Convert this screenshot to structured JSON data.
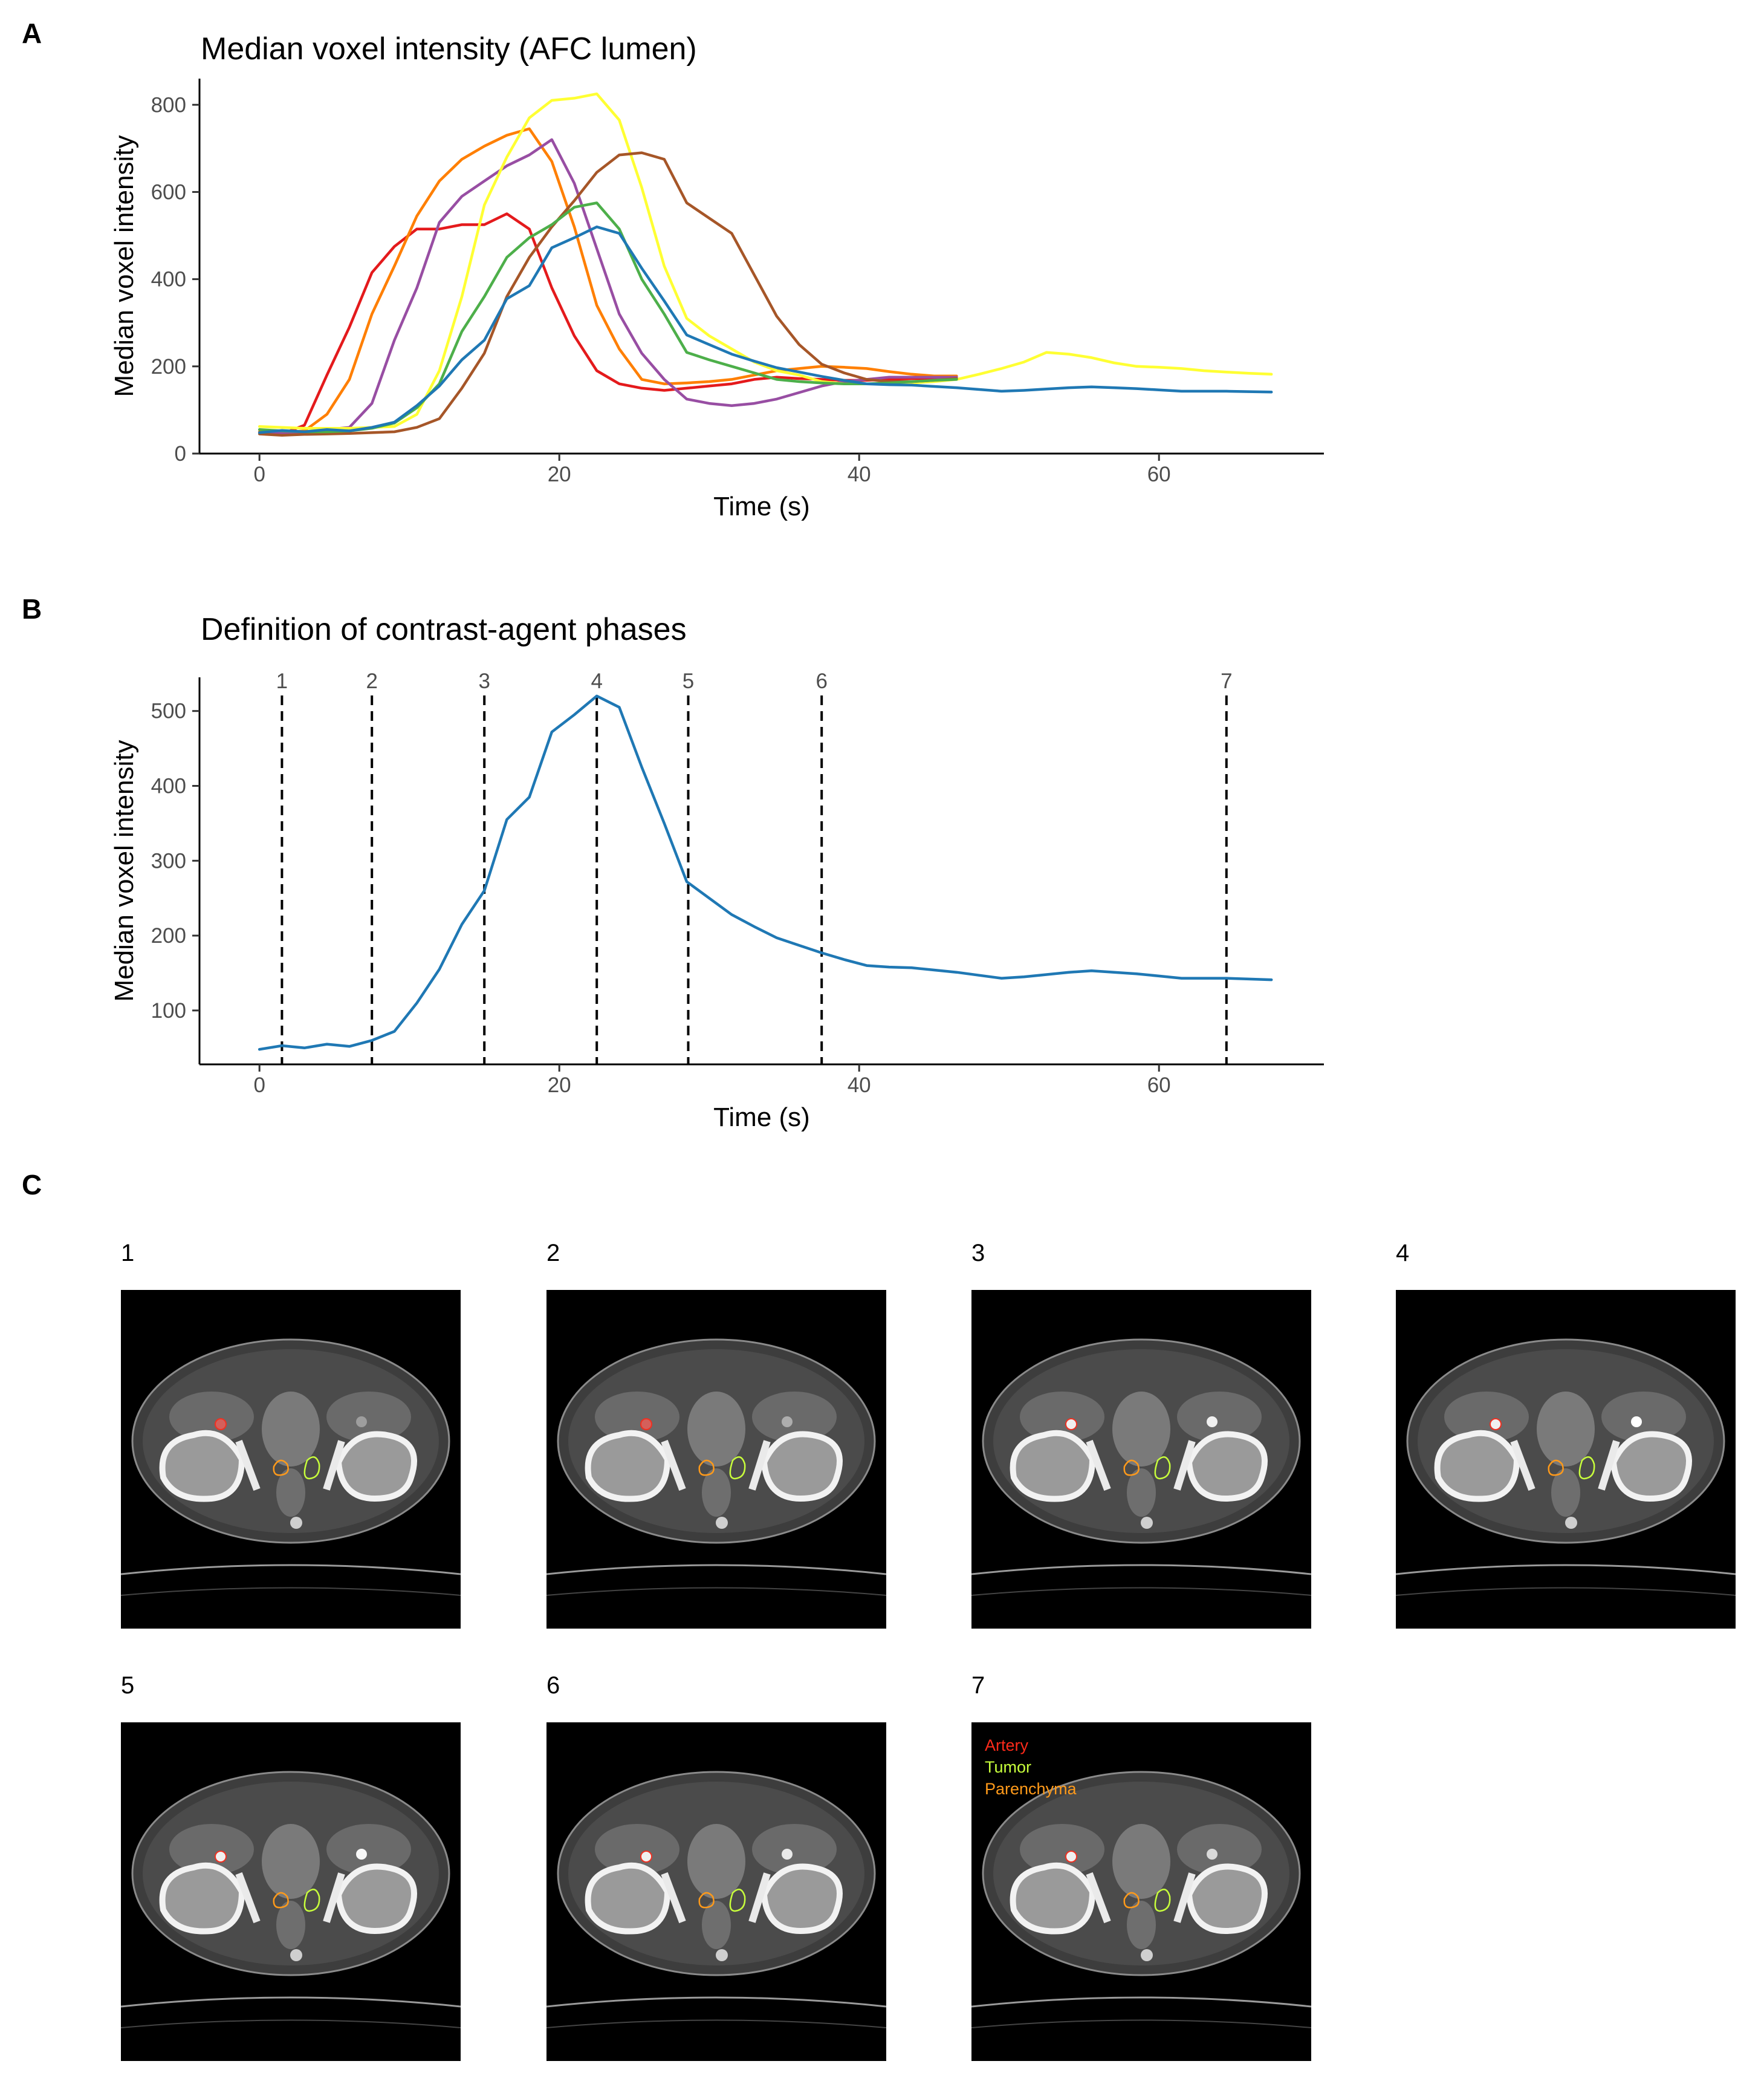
{
  "panels": {
    "A": {
      "letter": "A"
    },
    "B": {
      "letter": "B"
    },
    "C": {
      "letter": "C"
    }
  },
  "chart_data": [
    {
      "type": "line",
      "title": "Median voxel intensity (AFC lumen)",
      "xlabel": "Time (s)",
      "ylabel": "Median voxel intensity",
      "xlim": [
        -4,
        71
      ],
      "ylim": [
        0,
        860
      ],
      "xticks": [
        0,
        20,
        40,
        60
      ],
      "yticks": [
        0,
        200,
        400,
        600,
        800
      ],
      "grid": false,
      "series": [
        {
          "color": "#e41a1c",
          "x": [
            0,
            1.5,
            3,
            4.5,
            6,
            7.5,
            9,
            10.5,
            12,
            13.5,
            15,
            16.5,
            18,
            19.5,
            21,
            22.5,
            24,
            25.5,
            27,
            28.5,
            30,
            31.5,
            33,
            34.5,
            36,
            37.5,
            39,
            40.5,
            42,
            43.5,
            45,
            46.5
          ],
          "y": [
            50,
            45,
            65,
            180,
            290,
            415,
            475,
            515,
            515,
            525,
            525,
            550,
            515,
            380,
            270,
            190,
            160,
            150,
            145,
            150,
            155,
            160,
            170,
            175,
            172,
            170,
            168,
            168,
            170,
            172,
            172,
            173
          ]
        },
        {
          "color": "#ff7f00",
          "x": [
            0,
            1.5,
            3,
            4.5,
            6,
            7.5,
            9,
            10.5,
            12,
            13.5,
            15,
            16.5,
            18,
            19.5,
            21,
            22.5,
            24,
            25.5,
            27,
            28.5,
            30,
            31.5,
            33,
            34.5,
            36,
            37.5,
            39,
            40.5,
            42,
            43.5,
            45,
            46.5
          ],
          "y": [
            50,
            48,
            52,
            90,
            170,
            320,
            430,
            545,
            625,
            675,
            705,
            730,
            745,
            670,
            520,
            340,
            240,
            170,
            160,
            162,
            165,
            170,
            180,
            190,
            195,
            200,
            198,
            195,
            188,
            182,
            178,
            178
          ]
        },
        {
          "color": "#984ea3",
          "x": [
            0,
            1.5,
            3,
            4.5,
            6,
            7.5,
            9,
            10.5,
            12,
            13.5,
            15,
            16.5,
            18,
            19.5,
            21,
            22.5,
            24,
            25.5,
            27,
            28.5,
            30,
            31.5,
            33,
            34.5,
            36,
            37.5,
            39,
            40.5,
            42,
            43.5,
            45,
            46.5
          ],
          "y": [
            48,
            46,
            48,
            55,
            60,
            115,
            260,
            380,
            530,
            590,
            625,
            660,
            685,
            720,
            620,
            470,
            320,
            230,
            170,
            125,
            115,
            110,
            115,
            125,
            140,
            155,
            165,
            170,
            175,
            175,
            175,
            175
          ]
        },
        {
          "color": "#ffff33",
          "x": [
            0,
            1.5,
            3,
            4.5,
            6,
            7.5,
            9,
            10.5,
            12,
            13.5,
            15,
            16.5,
            18,
            19.5,
            21,
            22.5,
            24,
            25.5,
            27,
            28.5,
            30,
            31.5,
            33,
            34.5,
            36,
            37.5,
            39,
            40.5,
            42,
            43.5,
            45,
            46.5,
            48,
            49.5,
            51,
            52.5,
            54,
            55.5,
            57,
            58.5,
            60,
            61.5,
            63,
            64.5,
            66,
            67.5
          ],
          "y": [
            62,
            60,
            58,
            58,
            58,
            60,
            62,
            90,
            190,
            360,
            570,
            680,
            770,
            810,
            815,
            825,
            765,
            610,
            430,
            310,
            270,
            240,
            210,
            190,
            180,
            165,
            160,
            160,
            160,
            162,
            165,
            170,
            182,
            195,
            210,
            232,
            228,
            220,
            208,
            200,
            198,
            195,
            190,
            187,
            184,
            182
          ]
        },
        {
          "color": "#a65628",
          "x": [
            0,
            1.5,
            3,
            4.5,
            6,
            7.5,
            9,
            10.5,
            12,
            13.5,
            15,
            16.5,
            18,
            19.5,
            21,
            22.5,
            24,
            25.5,
            27,
            28.5,
            30,
            31.5,
            33,
            34.5,
            36,
            37.5,
            39,
            40.5,
            42,
            43.5,
            45,
            46.5
          ],
          "y": [
            45,
            42,
            44,
            45,
            46,
            48,
            50,
            60,
            80,
            150,
            230,
            360,
            450,
            520,
            580,
            645,
            685,
            690,
            675,
            575,
            540,
            505,
            410,
            315,
            250,
            205,
            185,
            170,
            165,
            165,
            168,
            172
          ]
        },
        {
          "color": "#4daf4a",
          "x": [
            0,
            1.5,
            3,
            4.5,
            6,
            7.5,
            9,
            10.5,
            12,
            13.5,
            15,
            16.5,
            18,
            19.5,
            21,
            22.5,
            24,
            25.5,
            27,
            28.5,
            30,
            31.5,
            33,
            34.5,
            36,
            37.5,
            39,
            40.5,
            42,
            43.5,
            45,
            46.5
          ],
          "y": [
            55,
            52,
            50,
            50,
            52,
            58,
            70,
            105,
            160,
            280,
            360,
            450,
            495,
            525,
            565,
            575,
            515,
            400,
            320,
            232,
            215,
            200,
            185,
            170,
            165,
            162,
            160,
            160,
            162,
            165,
            168,
            170
          ]
        },
        {
          "color": "#1f78b4",
          "x": [
            0,
            1.5,
            3,
            4.5,
            6,
            7.5,
            9,
            10.5,
            12,
            13.5,
            15,
            16.5,
            18,
            19.5,
            21,
            22.5,
            24,
            25.5,
            27,
            28.5,
            30,
            31.5,
            33,
            34.5,
            36,
            37.5,
            39,
            40.5,
            42,
            43.5,
            45,
            46.5,
            48,
            49.5,
            51,
            52.5,
            54,
            55.5,
            57,
            58.5,
            60,
            61.5,
            63,
            64.5,
            66,
            67.5
          ],
          "y": [
            48,
            53,
            50,
            55,
            52,
            60,
            72,
            110,
            155,
            215,
            260,
            355,
            385,
            472,
            495,
            520,
            505,
            425,
            350,
            272,
            250,
            228,
            212,
            197,
            187,
            177,
            168,
            160,
            158,
            157,
            154,
            151,
            147,
            143,
            145,
            148,
            151,
            153,
            151,
            149,
            146,
            143,
            143,
            143,
            142,
            141
          ]
        }
      ]
    },
    {
      "type": "line",
      "title": "Definition of contrast-agent phases",
      "xlabel": "Time (s)",
      "ylabel": "Median voxel intensity",
      "xlim": [
        -4,
        71
      ],
      "ylim": [
        28,
        545
      ],
      "xticks": [
        0,
        20,
        40,
        60
      ],
      "yticks": [
        100,
        200,
        300,
        400,
        500
      ],
      "grid": false,
      "series": [
        {
          "color": "#1f78b4",
          "x": [
            0,
            1.5,
            3,
            4.5,
            6,
            7.5,
            9,
            10.5,
            12,
            13.5,
            15,
            16.5,
            18,
            19.5,
            21,
            22.5,
            24,
            25.5,
            27,
            28.5,
            30,
            31.5,
            33,
            34.5,
            36,
            37.5,
            39,
            40.5,
            42,
            43.5,
            45,
            46.5,
            48,
            49.5,
            51,
            52.5,
            54,
            55.5,
            57,
            58.5,
            60,
            61.5,
            63,
            64.5,
            66,
            67.5
          ],
          "y": [
            48,
            53,
            50,
            55,
            52,
            60,
            72,
            110,
            155,
            215,
            260,
            355,
            385,
            472,
            495,
            520,
            505,
            425,
            350,
            272,
            250,
            228,
            212,
            197,
            187,
            177,
            168,
            160,
            158,
            157,
            154,
            151,
            147,
            143,
            145,
            148,
            151,
            153,
            151,
            149,
            146,
            143,
            143,
            143,
            142,
            141
          ]
        }
      ],
      "phases": [
        {
          "label": "1",
          "x": 1.5
        },
        {
          "label": "2",
          "x": 7.5
        },
        {
          "label": "3",
          "x": 15
        },
        {
          "label": "4",
          "x": 22.5
        },
        {
          "label": "5",
          "x": 28.6
        },
        {
          "label": "6",
          "x": 37.5
        },
        {
          "label": "7",
          "x": 64.5
        }
      ]
    }
  ],
  "ct_panels": [
    {
      "label": "1",
      "artery_color": "#e0605a",
      "vessel_bright": 0.35
    },
    {
      "label": "2",
      "artery_color": "#e0605a",
      "vessel_bright": 0.45
    },
    {
      "label": "3",
      "artery_color": "#ffffff",
      "vessel_bright": 0.9
    },
    {
      "label": "4",
      "artery_color": "#ffffff",
      "vessel_bright": 1.0
    },
    {
      "label": "5",
      "artery_color": "#ffffff",
      "vessel_bright": 0.95
    },
    {
      "label": "6",
      "artery_color": "#ffffff",
      "vessel_bright": 0.85
    },
    {
      "label": "7",
      "artery_color": "#ffffff",
      "vessel_bright": 0.75
    }
  ],
  "legend": [
    {
      "label": "Artery",
      "color": "#ff2a1a"
    },
    {
      "label": "Tumor",
      "color": "#c8ff3c"
    },
    {
      "label": "Parenchyma",
      "color": "#ff9a1a"
    }
  ]
}
